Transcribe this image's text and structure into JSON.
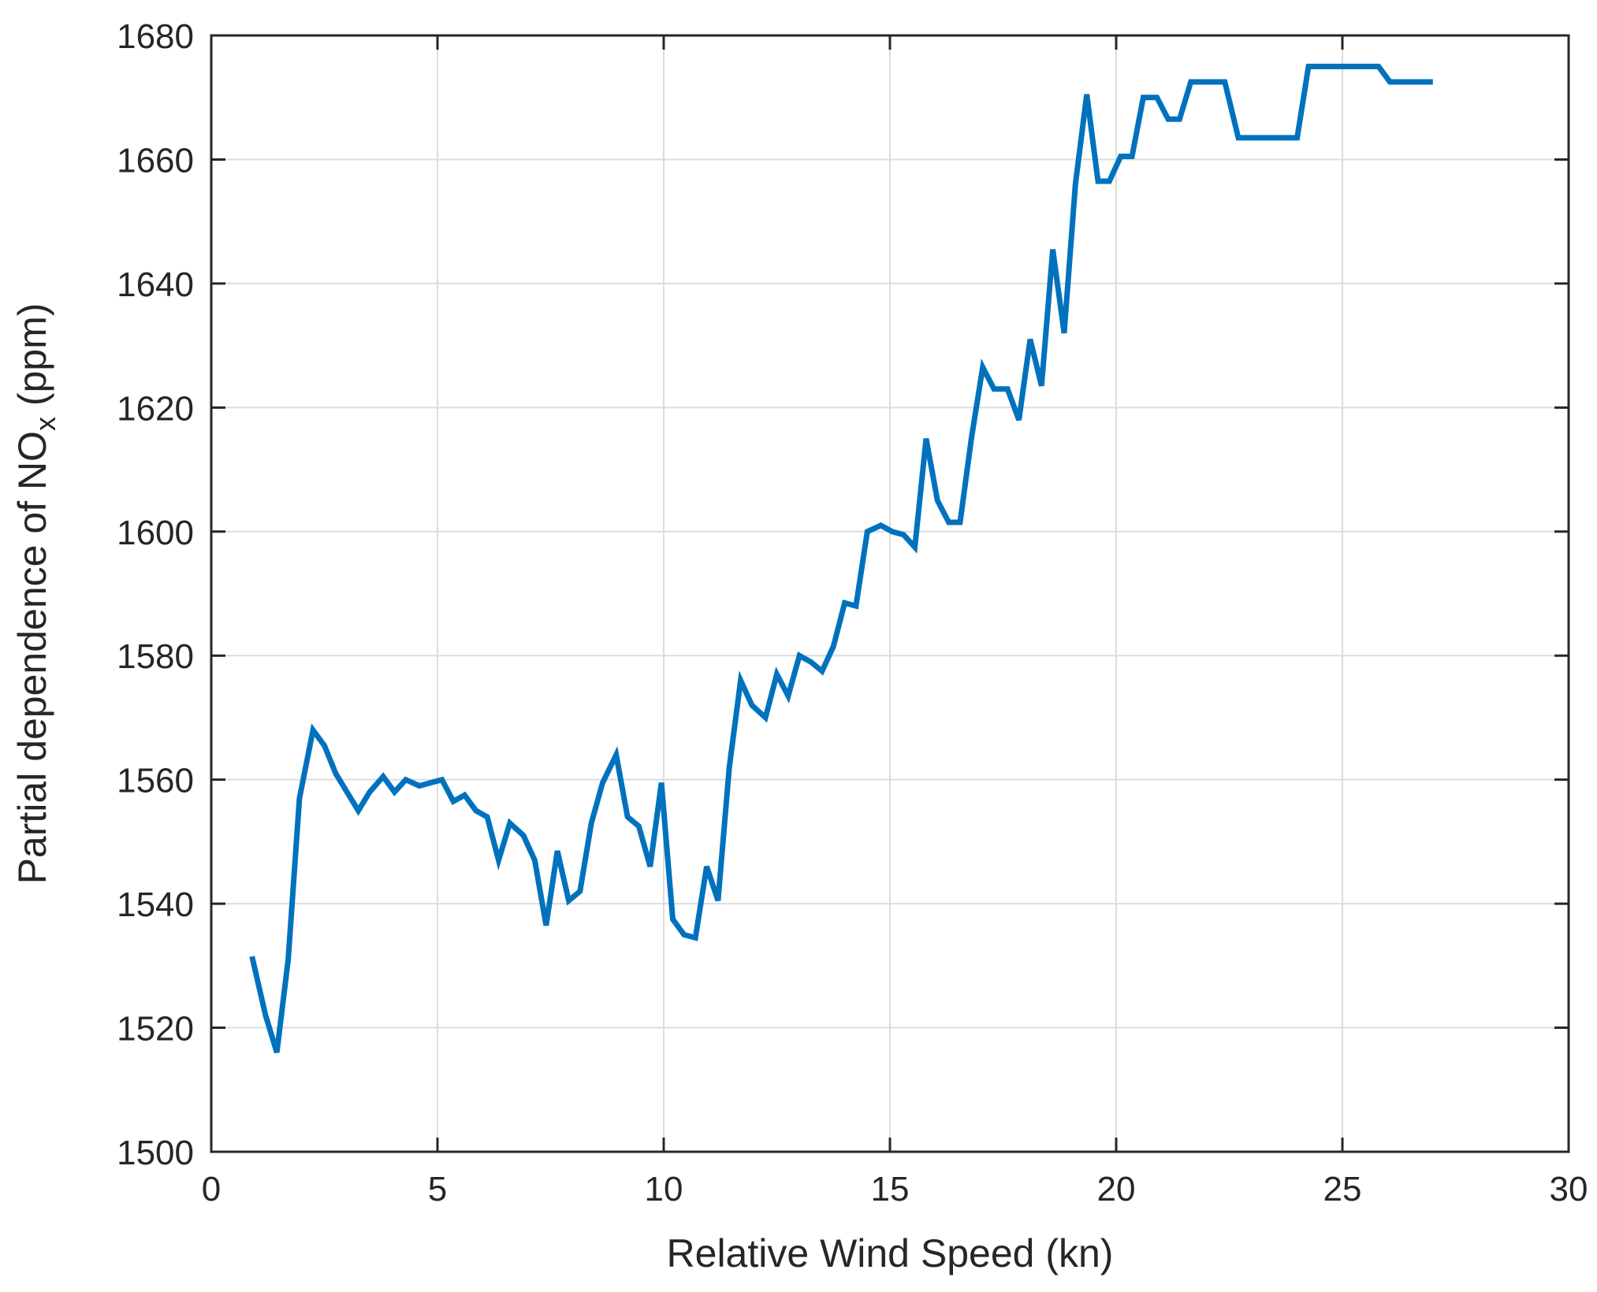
{
  "chart_data": {
    "type": "line",
    "xlabel": "Relative Wind Speed (kn)",
    "ylabel_main": "Partial dependence of NO",
    "ylabel_sub": "x",
    "ylabel_unit": " (ppm)",
    "xlim": [
      0,
      30
    ],
    "ylim": [
      1500,
      1680
    ],
    "xticks": [
      "0",
      "5",
      "10",
      "15",
      "20",
      "25",
      "30"
    ],
    "yticks": [
      "1500",
      "1520",
      "1540",
      "1560",
      "1580",
      "1600",
      "1620",
      "1640",
      "1660",
      "1680"
    ],
    "grid": true,
    "color": "#0072bd",
    "series": [
      {
        "x": [
          0.9,
          1.2,
          1.45,
          1.7,
          1.95,
          2.25,
          2.5,
          2.75,
          3.0,
          3.25,
          3.5,
          3.8,
          4.05,
          4.3,
          4.6,
          4.85,
          5.1,
          5.35,
          5.6,
          5.85,
          6.1,
          6.35,
          6.6,
          6.9,
          7.15,
          7.4,
          7.65,
          7.9,
          8.15,
          8.4,
          8.65,
          8.95,
          9.2,
          9.45,
          9.7,
          9.95,
          10.2,
          10.45,
          10.7,
          10.95,
          11.2,
          11.45,
          11.7,
          11.95,
          12.25,
          12.5,
          12.75,
          13.0,
          13.25,
          13.5,
          13.75,
          14.0,
          14.25,
          14.5,
          14.8,
          15.05,
          15.3,
          15.55,
          15.8,
          16.05,
          16.3,
          16.55,
          16.8,
          17.05,
          17.3,
          17.6,
          17.85,
          18.1,
          18.35,
          18.6,
          18.85,
          19.1,
          19.35,
          19.6,
          19.85,
          20.1,
          20.35,
          20.6,
          20.9,
          21.15,
          21.4,
          21.65,
          21.9,
          22.15,
          22.4,
          22.7,
          22.95,
          23.2,
          23.45,
          23.7,
          24.0,
          24.25,
          24.5,
          24.75,
          25.0,
          25.25,
          25.5,
          25.8,
          26.05,
          26.3,
          26.55,
          26.8,
          27.0
        ],
        "y": [
          1531.5,
          1522,
          1516,
          1531,
          1557,
          1568,
          1565.5,
          1561,
          1558,
          1555,
          1558,
          1560.5,
          1558,
          1560,
          1559,
          1559.5,
          1560,
          1556.5,
          1557.5,
          1555,
          1554,
          1547,
          1553,
          1551,
          1547,
          1536.5,
          1548.5,
          1540.5,
          1542,
          1553,
          1559.5,
          1564,
          1554,
          1552.5,
          1546,
          1559.5,
          1537.5,
          1535,
          1534.5,
          1546,
          1540.5,
          1562,
          1576,
          1572,
          1570,
          1577,
          1573.5,
          1580,
          1579,
          1577.5,
          1581.5,
          1588.5,
          1588,
          1600,
          1601,
          1600,
          1599.5,
          1597.5,
          1615,
          1605,
          1601.5,
          1601.5,
          1615,
          1626.5,
          1623,
          1623,
          1618,
          1631,
          1623.5,
          1645.5,
          1632,
          1656,
          1670.5,
          1656.5,
          1656.5,
          1660.5,
          1660.5,
          1670,
          1670,
          1666.5,
          1666.5,
          1672.5,
          1672.5,
          1672.5,
          1672.5,
          1663.5,
          1663.5,
          1663.5,
          1663.5,
          1663.5,
          1663.5,
          1675,
          1675,
          1675,
          1675,
          1675,
          1675,
          1675,
          1672.5,
          1672.5,
          1672.5,
          1672.5,
          1672.5
        ]
      }
    ]
  }
}
